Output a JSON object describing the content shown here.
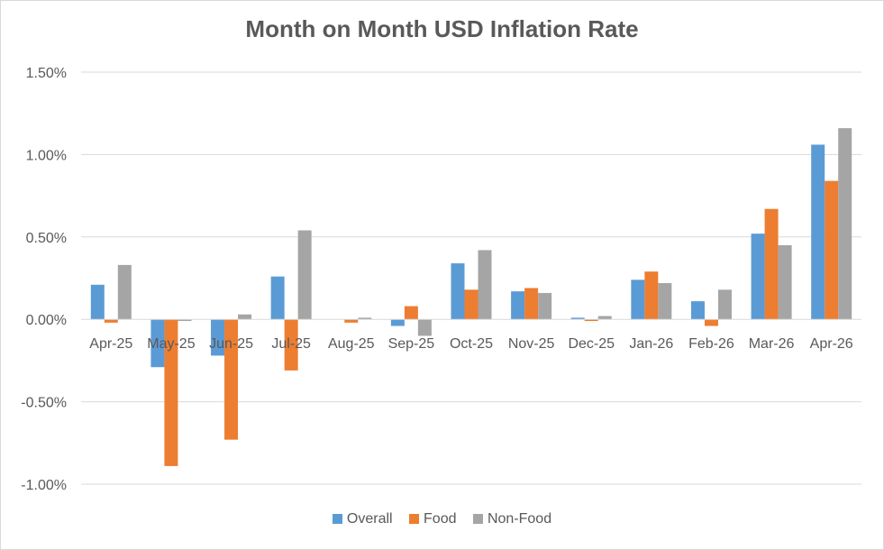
{
  "chart_data": {
    "type": "bar",
    "title": "Month on Month USD Inflation Rate",
    "xlabel": "",
    "ylabel": "",
    "ylim": [
      -1.0,
      1.5
    ],
    "yticks": [
      1.5,
      1.0,
      0.5,
      0.0,
      -0.5,
      -1.0
    ],
    "ytick_labels": [
      "1.50%",
      "1.00%",
      "0.50%",
      "0.00%",
      "-0.50%",
      "-1.00%"
    ],
    "grid": true,
    "legend_position": "bottom",
    "categories": [
      "Apr-25",
      "May-25",
      "Jun-25",
      "Jul-25",
      "Aug-25",
      "Sep-25",
      "Oct-25",
      "Nov-25",
      "Dec-25",
      "Jan-26",
      "Feb-26",
      "Mar-26",
      "Apr-26"
    ],
    "series": [
      {
        "name": "Overall",
        "color": "#5b9bd5",
        "values": [
          0.21,
          -0.29,
          -0.22,
          0.26,
          0.0,
          -0.04,
          0.34,
          0.17,
          0.01,
          0.24,
          0.11,
          0.52,
          1.06
        ]
      },
      {
        "name": "Food",
        "color": "#ed7d31",
        "values": [
          -0.02,
          -0.89,
          -0.73,
          -0.31,
          -0.02,
          0.08,
          0.18,
          0.19,
          -0.01,
          0.29,
          -0.04,
          0.67,
          0.84
        ]
      },
      {
        "name": "Non-Food",
        "color": "#a5a5a5",
        "values": [
          0.33,
          -0.01,
          0.03,
          0.54,
          0.01,
          -0.1,
          0.42,
          0.16,
          0.02,
          0.22,
          0.18,
          0.45,
          1.16
        ]
      }
    ]
  }
}
